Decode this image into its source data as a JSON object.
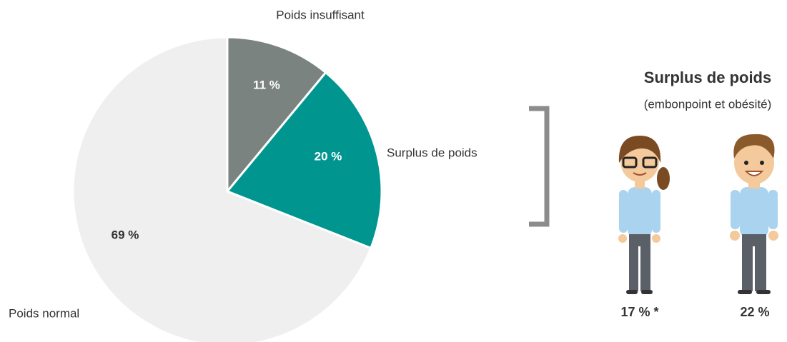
{
  "chart_data": {
    "type": "pie",
    "categories": [
      "Poids insuffisant",
      "Surplus de poids",
      "Poids normal"
    ],
    "values": [
      11,
      20,
      69
    ],
    "value_labels": [
      "11 %",
      "20 %",
      "69 %"
    ],
    "colors": [
      "#7a837f",
      "#00968f",
      "#efefef"
    ]
  },
  "panel": {
    "title": "Surplus de poids",
    "subtitle": "(embonpoint et obésité)",
    "labels": [
      "17 % *",
      "22 %"
    ]
  }
}
